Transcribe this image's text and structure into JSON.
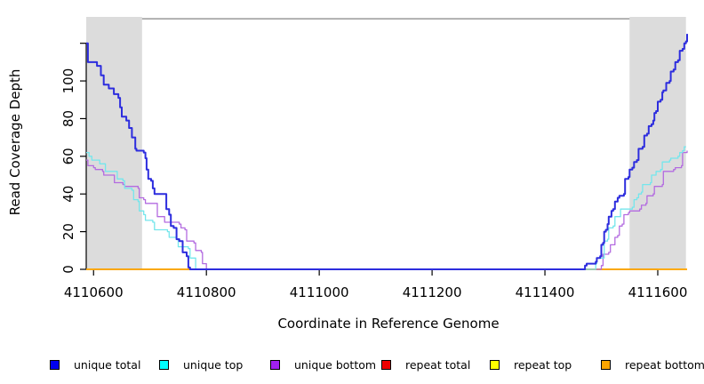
{
  "chart_data": {
    "type": "line",
    "title": "",
    "xlabel": "Coordinate in Reference Genome",
    "ylabel": "Read Coverage Depth",
    "xlim": [
      4110587,
      4111652
    ],
    "ylim": [
      0,
      134
    ],
    "grid": false,
    "x_ticks": [
      4110600,
      4110800,
      4111000,
      4111200,
      4111400,
      4111600
    ],
    "x_tick_labels": [
      "4110600",
      "4110800",
      "4111000",
      "4111200",
      "4111400",
      "4111600"
    ],
    "y_ticks": [
      0,
      20,
      40,
      60,
      80,
      100,
      120
    ],
    "y_tick_labels": [
      "0",
      "20",
      "40",
      "60",
      "80",
      "100",
      ""
    ],
    "shaded_regions": [
      {
        "x1": 4110587,
        "x2": 4110686,
        "color": "#dcdcdc"
      },
      {
        "x1": 4111550,
        "x2": 4111650,
        "color": "#dcdcdc"
      }
    ],
    "boundary_line": {
      "y": 133,
      "x1": 4110686,
      "x2": 4111550,
      "color": "#999999"
    },
    "axis_color": "#000000",
    "series": [
      {
        "name": "repeat total",
        "color": "#ee0000",
        "width": 1.4,
        "points": [
          [
            4110587,
            0
          ],
          [
            4111652,
            0
          ]
        ]
      },
      {
        "name": "repeat top",
        "color": "#ffff00",
        "width": 1.4,
        "points": [
          [
            4110587,
            0
          ],
          [
            4111652,
            0
          ]
        ]
      },
      {
        "name": "repeat bottom",
        "color": "#ffa500",
        "width": 1.6,
        "points": [
          [
            4110587,
            0
          ],
          [
            4111652,
            0
          ]
        ]
      },
      {
        "name": "unique bottom",
        "color": "#b36be0",
        "width": 1.3,
        "points": [
          [
            4110587,
            58
          ],
          [
            4110590,
            55
          ],
          [
            4110600,
            54
          ],
          [
            4110603,
            53
          ],
          [
            4110616,
            52
          ],
          [
            4110618,
            50
          ],
          [
            4110634,
            50
          ],
          [
            4110637,
            46
          ],
          [
            4110652,
            45
          ],
          [
            4110655,
            44
          ],
          [
            4110679,
            43
          ],
          [
            4110681,
            38
          ],
          [
            4110689,
            37
          ],
          [
            4110692,
            35
          ],
          [
            4110710,
            35
          ],
          [
            4110713,
            28
          ],
          [
            4110723,
            28
          ],
          [
            4110726,
            25
          ],
          [
            4110752,
            24
          ],
          [
            4110755,
            22
          ],
          [
            4110762,
            21
          ],
          [
            4110765,
            15
          ],
          [
            4110778,
            14
          ],
          [
            4110781,
            10
          ],
          [
            4110791,
            9
          ],
          [
            4110793,
            3
          ],
          [
            4110800,
            0
          ],
          [
            4111498,
            0
          ],
          [
            4111500,
            2
          ],
          [
            4111503,
            8
          ],
          [
            4111513,
            9
          ],
          [
            4111516,
            13
          ],
          [
            4111521,
            13
          ],
          [
            4111524,
            17
          ],
          [
            4111529,
            18
          ],
          [
            4111532,
            23
          ],
          [
            4111537,
            24
          ],
          [
            4111540,
            29
          ],
          [
            4111548,
            30
          ],
          [
            4111550,
            31
          ],
          [
            4111568,
            32
          ],
          [
            4111571,
            34
          ],
          [
            4111579,
            35
          ],
          [
            4111581,
            39
          ],
          [
            4111592,
            40
          ],
          [
            4111594,
            44
          ],
          [
            4111608,
            45
          ],
          [
            4111610,
            52
          ],
          [
            4111628,
            53
          ],
          [
            4111631,
            54
          ],
          [
            4111642,
            55
          ],
          [
            4111644,
            62
          ],
          [
            4111652,
            63
          ]
        ]
      },
      {
        "name": "unique top",
        "color": "#74e6ec",
        "width": 1.3,
        "points": [
          [
            4110587,
            62
          ],
          [
            4110592,
            60
          ],
          [
            4110597,
            58
          ],
          [
            4110611,
            56
          ],
          [
            4110621,
            52
          ],
          [
            4110642,
            48
          ],
          [
            4110652,
            47
          ],
          [
            4110655,
            43
          ],
          [
            4110668,
            42
          ],
          [
            4110671,
            37
          ],
          [
            4110679,
            36
          ],
          [
            4110681,
            31
          ],
          [
            4110689,
            29
          ],
          [
            4110692,
            26
          ],
          [
            4110705,
            25
          ],
          [
            4110708,
            21
          ],
          [
            4110731,
            20
          ],
          [
            4110734,
            17
          ],
          [
            4110747,
            16
          ],
          [
            4110750,
            12
          ],
          [
            4110768,
            11
          ],
          [
            4110771,
            6
          ],
          [
            4110778,
            6
          ],
          [
            4110781,
            0
          ],
          [
            4111488,
            0
          ],
          [
            4111490,
            3
          ],
          [
            4111492,
            6
          ],
          [
            4111503,
            6
          ],
          [
            4111505,
            15
          ],
          [
            4111511,
            16
          ],
          [
            4111513,
            22
          ],
          [
            4111521,
            23
          ],
          [
            4111524,
            28
          ],
          [
            4111532,
            28
          ],
          [
            4111534,
            32
          ],
          [
            4111555,
            33
          ],
          [
            4111558,
            37
          ],
          [
            4111563,
            38
          ],
          [
            4111566,
            40
          ],
          [
            4111571,
            41
          ],
          [
            4111573,
            45
          ],
          [
            4111587,
            46
          ],
          [
            4111589,
            50
          ],
          [
            4111594,
            50
          ],
          [
            4111597,
            52
          ],
          [
            4111605,
            53
          ],
          [
            4111608,
            57
          ],
          [
            4111621,
            58
          ],
          [
            4111623,
            59
          ],
          [
            4111636,
            60
          ],
          [
            4111639,
            62
          ],
          [
            4111644,
            63
          ],
          [
            4111647,
            65
          ],
          [
            4111650,
            65
          ]
        ]
      },
      {
        "name": "unique total",
        "color": "#2d2dde",
        "width": 2,
        "points": [
          [
            4110587,
            120
          ],
          [
            4110590,
            110
          ],
          [
            4110603,
            110
          ],
          [
            4110606,
            108
          ],
          [
            4110611,
            108
          ],
          [
            4110613,
            103
          ],
          [
            4110618,
            98
          ],
          [
            4110627,
            96
          ],
          [
            4110636,
            93
          ],
          [
            4110644,
            91
          ],
          [
            4110647,
            86
          ],
          [
            4110650,
            81
          ],
          [
            4110658,
            79
          ],
          [
            4110663,
            75
          ],
          [
            4110668,
            70
          ],
          [
            4110674,
            64
          ],
          [
            4110676,
            63
          ],
          [
            4110689,
            62
          ],
          [
            4110692,
            59
          ],
          [
            4110694,
            53
          ],
          [
            4110697,
            48
          ],
          [
            4110702,
            47
          ],
          [
            4110705,
            43
          ],
          [
            4110708,
            40
          ],
          [
            4110726,
            40
          ],
          [
            4110729,
            32
          ],
          [
            4110734,
            29
          ],
          [
            4110737,
            23
          ],
          [
            4110742,
            22
          ],
          [
            4110747,
            16
          ],
          [
            4110752,
            15
          ],
          [
            4110758,
            9
          ],
          [
            4110765,
            7
          ],
          [
            4110768,
            1
          ],
          [
            4110771,
            0
          ],
          [
            4111469,
            0
          ],
          [
            4111471,
            2
          ],
          [
            4111474,
            3
          ],
          [
            4111490,
            4
          ],
          [
            4111492,
            6
          ],
          [
            4111498,
            7
          ],
          [
            4111500,
            13
          ],
          [
            4111503,
            14
          ],
          [
            4111505,
            20
          ],
          [
            4111508,
            21
          ],
          [
            4111511,
            24
          ],
          [
            4111513,
            28
          ],
          [
            4111518,
            31
          ],
          [
            4111521,
            32
          ],
          [
            4111524,
            36
          ],
          [
            4111529,
            38
          ],
          [
            4111532,
            39
          ],
          [
            4111540,
            40
          ],
          [
            4111542,
            48
          ],
          [
            4111548,
            49
          ],
          [
            4111550,
            53
          ],
          [
            4111555,
            54
          ],
          [
            4111558,
            57
          ],
          [
            4111563,
            58
          ],
          [
            4111566,
            64
          ],
          [
            4111573,
            65
          ],
          [
            4111576,
            71
          ],
          [
            4111581,
            72
          ],
          [
            4111584,
            76
          ],
          [
            4111589,
            77
          ],
          [
            4111592,
            79
          ],
          [
            4111594,
            83
          ],
          [
            4111597,
            84
          ],
          [
            4111600,
            89
          ],
          [
            4111605,
            90
          ],
          [
            4111608,
            94
          ],
          [
            4111610,
            95
          ],
          [
            4111615,
            99
          ],
          [
            4111621,
            100
          ],
          [
            4111623,
            105
          ],
          [
            4111628,
            106
          ],
          [
            4111631,
            110
          ],
          [
            4111636,
            111
          ],
          [
            4111639,
            116
          ],
          [
            4111644,
            117
          ],
          [
            4111647,
            120
          ],
          [
            4111650,
            121
          ],
          [
            4111652,
            125
          ]
        ]
      }
    ]
  },
  "legend": {
    "items": [
      {
        "label": "unique total",
        "fill": "#0000ee"
      },
      {
        "label": "unique top",
        "fill": "#00ffff"
      },
      {
        "label": "unique bottom",
        "fill": "#a020f0"
      },
      {
        "label": "repeat total",
        "fill": "#ee0000"
      },
      {
        "label": "repeat top",
        "fill": "#ffff00"
      },
      {
        "label": "repeat bottom",
        "fill": "#ffa500"
      }
    ]
  }
}
